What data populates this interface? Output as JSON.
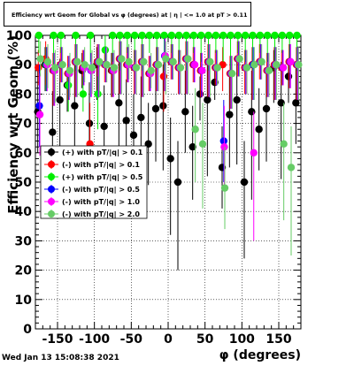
{
  "title": "Efficiency wrt Geom for Global vs φ (degrees) at | η | <= 1.0 at pT > 0.11",
  "footer": "Wed Jan 13 15:08:38 2021",
  "chart_data": {
    "type": "scatter",
    "xlabel": "φ (degrees)",
    "ylabel": "Efficiency wrt Geom (%)",
    "xlim": [
      -180,
      180
    ],
    "ylim": [
      0,
      100
    ],
    "xticks": [
      -150,
      -100,
      -50,
      0,
      50,
      100,
      150
    ],
    "yticks": [
      0,
      10,
      20,
      30,
      40,
      50,
      60,
      70,
      80,
      90,
      100
    ],
    "grid": true,
    "legend_position": "center-left",
    "series": [
      {
        "name": "(+) with pT/|q| > 0.1",
        "color": "#000000",
        "x": [
          -175,
          -165,
          -155,
          -145,
          -135,
          -125,
          -115,
          -105,
          -95,
          -85,
          -75,
          -65,
          -55,
          -45,
          -35,
          -25,
          -15,
          -5,
          5,
          15,
          25,
          35,
          45,
          55,
          65,
          75,
          85,
          95,
          105,
          115,
          125,
          135,
          145,
          155,
          165,
          175
        ],
        "y": [
          74,
          90,
          67,
          78,
          83,
          76,
          88,
          70,
          90,
          69,
          88,
          77,
          71,
          66,
          72,
          63,
          75,
          76,
          58,
          50,
          74,
          62,
          80,
          78,
          84,
          55,
          73,
          78,
          50,
          74,
          68,
          75,
          89,
          77,
          86,
          77
        ]
      },
      {
        "name": "(-) with pT/|q| > 0.1",
        "color": "#ff0000",
        "x": [
          -175,
          -165,
          -155,
          -145,
          -135,
          -125,
          -115,
          -105,
          -95,
          -85,
          -75,
          -65,
          -55,
          -45,
          -35,
          -25,
          -15,
          -5,
          5,
          15,
          25,
          35,
          45,
          55,
          65,
          75,
          85,
          95,
          105,
          115,
          125,
          135,
          145,
          155,
          165,
          175
        ],
        "y": [
          89,
          92,
          88,
          90,
          87,
          91,
          89,
          63,
          91,
          90,
          88,
          92,
          90,
          89,
          91,
          87,
          90,
          86,
          91,
          89,
          92,
          90,
          88,
          91,
          89,
          90,
          87,
          92,
          89,
          90,
          91,
          88,
          90,
          89,
          91,
          90
        ]
      },
      {
        "name": "(+) with pT/|q| > 0.5",
        "color": "#00ee00",
        "x": [
          -175,
          -165,
          -155,
          -145,
          -135,
          -125,
          -115,
          -105,
          -95,
          -85,
          -75,
          -65,
          -55,
          -45,
          -35,
          -25,
          -15,
          -5,
          5,
          15,
          25,
          35,
          45,
          55,
          65,
          75,
          85,
          95,
          105,
          115,
          125,
          135,
          145,
          155,
          165,
          175
        ],
        "y": [
          100,
          90,
          100,
          100,
          83,
          100,
          80,
          100,
          80,
          95,
          100,
          100,
          100,
          100,
          100,
          100,
          100,
          100,
          100,
          100,
          100,
          100,
          100,
          100,
          100,
          100,
          100,
          100,
          100,
          100,
          100,
          100,
          100,
          100,
          100,
          100
        ]
      },
      {
        "name": "(-) with pT/|q| > 0.5",
        "color": "#0000ff",
        "x": [
          -175,
          -165,
          -155,
          -145,
          -135,
          -125,
          -115,
          -105,
          -95,
          -85,
          -75,
          -65,
          -55,
          -45,
          -35,
          -25,
          -15,
          -5,
          5,
          15,
          25,
          35,
          45,
          55,
          65,
          75,
          85,
          95,
          105,
          115,
          125,
          135,
          145,
          155,
          165,
          175
        ],
        "y": [
          76,
          90,
          88,
          90,
          87,
          91,
          89,
          88,
          91,
          90,
          88,
          92,
          90,
          89,
          91,
          87,
          90,
          93,
          91,
          89,
          92,
          90,
          88,
          91,
          89,
          64,
          87,
          92,
          89,
          90,
          91,
          88,
          90,
          89,
          91,
          90
        ]
      },
      {
        "name": "(-) with pT/|q| > 1.0",
        "color": "#ff00ff",
        "x": [
          -175,
          -165,
          -155,
          -145,
          -135,
          -125,
          -115,
          -105,
          -95,
          -85,
          -75,
          -65,
          -55,
          -45,
          -35,
          -25,
          -15,
          -5,
          5,
          15,
          25,
          35,
          45,
          55,
          65,
          75,
          85,
          95,
          105,
          115,
          125,
          135,
          145,
          155,
          165,
          175
        ],
        "y": [
          73,
          90,
          88,
          90,
          87,
          91,
          89,
          88,
          91,
          90,
          88,
          92,
          90,
          89,
          91,
          87,
          90,
          93,
          91,
          89,
          92,
          90,
          88,
          91,
          89,
          62,
          87,
          92,
          89,
          60,
          91,
          88,
          90,
          89,
          91,
          90
        ]
      },
      {
        "name": "(-) with pT/|q| > 2.0",
        "color": "#66cc66",
        "x": [
          -175,
          -165,
          -155,
          -145,
          -135,
          -125,
          -115,
          -105,
          -95,
          -85,
          -75,
          -65,
          -55,
          -45,
          -35,
          -25,
          -15,
          -5,
          5,
          15,
          25,
          35,
          45,
          55,
          65,
          75,
          85,
          95,
          105,
          115,
          125,
          135,
          145,
          155,
          165,
          175
        ],
        "y": [
          92,
          91,
          89,
          90,
          88,
          91,
          90,
          89,
          91,
          90,
          89,
          92,
          91,
          89,
          91,
          88,
          90,
          92,
          91,
          89,
          92,
          68,
          63,
          91,
          89,
          48,
          87,
          92,
          89,
          90,
          91,
          88,
          90,
          63,
          55,
          90
        ]
      }
    ]
  }
}
